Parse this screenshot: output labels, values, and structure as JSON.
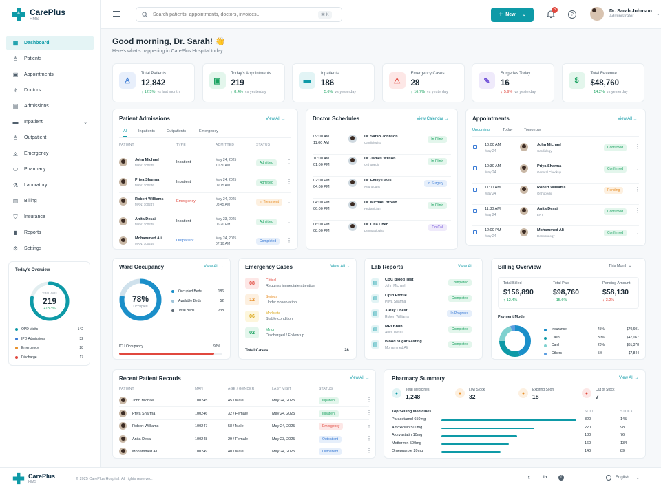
{
  "brand": {
    "name": "CarePlus",
    "sub": "HMS"
  },
  "header": {
    "search_placeholder": "Search patients, appointments, doctors, invoices...",
    "search_shortcut": "⌘ K",
    "new_button": "New",
    "notifications_count": "8",
    "user_name": "Dr. Sarah Johnson",
    "user_role": "Administrator"
  },
  "sidebar": {
    "items": [
      {
        "label": "Dashboard",
        "icon": "grid-icon"
      },
      {
        "label": "Patients",
        "icon": "user-icon"
      },
      {
        "label": "Appointments",
        "icon": "calendar-icon"
      },
      {
        "label": "Doctors",
        "icon": "doctor-icon"
      },
      {
        "label": "Admissions",
        "icon": "clipboard-icon"
      },
      {
        "label": "Inpatient",
        "icon": "bed-icon"
      },
      {
        "label": "Outpatient",
        "icon": "walk-icon"
      },
      {
        "label": "Emergency",
        "icon": "siren-icon"
      },
      {
        "label": "Pharmacy",
        "icon": "pill-icon"
      },
      {
        "label": "Laboratory",
        "icon": "flask-icon"
      },
      {
        "label": "Billing",
        "icon": "receipt-icon"
      },
      {
        "label": "Insurance",
        "icon": "shield-icon"
      },
      {
        "label": "Reports",
        "icon": "chart-icon"
      },
      {
        "label": "Settings",
        "icon": "gear-icon"
      }
    ],
    "overview": {
      "title": "Today's Overview",
      "ring_label": "Total Visits",
      "ring_value": "219",
      "ring_change": "+18.3%",
      "ring_fraction": 0.78,
      "rows": [
        {
          "label": "OPD Visits",
          "value": "142",
          "color": "#0e9aa7"
        },
        {
          "label": "IPD Admissions",
          "value": "32",
          "color": "#3a7bd5"
        },
        {
          "label": "Emergency",
          "value": "28",
          "color": "#e8902a"
        },
        {
          "label": "Discharge",
          "value": "17",
          "color": "#e0483e"
        }
      ]
    }
  },
  "greeting": {
    "title": "Good morning, Dr. Sarah! 👋",
    "subtitle": "Here's what's happening in CarePlus Hospital today."
  },
  "stats": [
    {
      "label": "Total Patients",
      "value": "12,842",
      "change": "12.5%",
      "period": "vs last month",
      "up": true,
      "color": "#3a7bd5",
      "bg": "#e8effb",
      "icon": "users-icon"
    },
    {
      "label": "Today's Appointments",
      "value": "219",
      "change": "8.4%",
      "period": "vs yesterday",
      "up": true,
      "color": "#1aa260",
      "bg": "#e3f6ec",
      "icon": "calendar-icon"
    },
    {
      "label": "Inpatients",
      "value": "186",
      "change": "5.6%",
      "period": "vs yesterday",
      "up": true,
      "color": "#0e9aa7",
      "bg": "#e2f4f5",
      "icon": "bed-icon"
    },
    {
      "label": "Emergency Cases",
      "value": "28",
      "change": "16.7%",
      "period": "vs yesterday",
      "up": true,
      "color": "#e0483e",
      "bg": "#fde7e6",
      "icon": "alert-icon"
    },
    {
      "label": "Surgeries Today",
      "value": "16",
      "change": "5.9%",
      "period": "vs yesterday",
      "up": false,
      "color": "#6c4bd6",
      "bg": "#efeafb",
      "icon": "scalpel-icon"
    },
    {
      "label": "Total Revenue",
      "value": "$48,760",
      "change": "14.2%",
      "period": "vs yesterday",
      "up": true,
      "color": "#1aa260",
      "bg": "#e3f6ec",
      "icon": "dollar-icon"
    }
  ],
  "admissions": {
    "title": "Patient Admissions",
    "view_all": "View All",
    "tabs": [
      "All",
      "Inpatients",
      "Outpatients",
      "Emergency"
    ],
    "headers": [
      "PATIENT",
      "TYPE",
      "ADMITTED",
      "STATUS"
    ],
    "rows": [
      {
        "name": "John Michael",
        "mrn": "MRN: 100245",
        "type": "Inpatient",
        "date": "May 24, 2025",
        "time": "10:30 AM",
        "status": "Admitted",
        "tone": "green"
      },
      {
        "name": "Priya Sharma",
        "mrn": "MRN: 100246",
        "type": "Inpatient",
        "date": "May 24, 2025",
        "time": "09:15 AM",
        "status": "Admitted",
        "tone": "green"
      },
      {
        "name": "Robert Williams",
        "mrn": "MRN: 100247",
        "type": "Emergency",
        "date": "May 24, 2025",
        "time": "08:45 AM",
        "status": "In Treatment",
        "tone": "orange"
      },
      {
        "name": "Anita Desai",
        "mrn": "MRN: 100248",
        "type": "Inpatient",
        "date": "May 23, 2025",
        "time": "06:20 PM",
        "status": "Admitted",
        "tone": "green"
      },
      {
        "name": "Mohammed Ali",
        "mrn": "MRN: 100249",
        "type": "Outpatient",
        "date": "May 24, 2025",
        "time": "07:10 AM",
        "status": "Completed",
        "tone": "blue"
      }
    ]
  },
  "schedules": {
    "title": "Doctor Schedules",
    "view_calendar": "View Calendar",
    "rows": [
      {
        "t1": "09:00 AM",
        "t2": "11:00 AM",
        "name": "Dr. Sarah Johnson",
        "spec": "Cardiologist",
        "status": "In Clinic",
        "tone": "green"
      },
      {
        "t1": "10:00 AM",
        "t2": "01:00 PM",
        "name": "Dr. James Wilson",
        "spec": "Orthopedic",
        "status": "In Clinic",
        "tone": "green"
      },
      {
        "t1": "02:00 PM",
        "t2": "04:00 PM",
        "name": "Dr. Emily Davis",
        "spec": "Neurologist",
        "status": "In Surgery",
        "tone": "blue"
      },
      {
        "t1": "04:00 PM",
        "t2": "06:00 PM",
        "name": "Dr. Michael Brown",
        "spec": "Pediatrician",
        "status": "In Clinic",
        "tone": "green"
      },
      {
        "t1": "06:00 PM",
        "t2": "08:00 PM",
        "name": "Dr. Lisa Chen",
        "spec": "Dermatologist",
        "status": "On Call",
        "tone": "purple"
      }
    ]
  },
  "appointments": {
    "title": "Appointments",
    "view_all": "View All",
    "tabs": [
      "Upcoming",
      "Today",
      "Tomorrow"
    ],
    "rows": [
      {
        "time": "10:00 AM",
        "date": "May 24",
        "name": "John Michael",
        "dept": "Cardiology",
        "status": "Confirmed",
        "tone": "green"
      },
      {
        "time": "10:30 AM",
        "date": "May 24",
        "name": "Priya Sharma",
        "dept": "General Checkup",
        "status": "Confirmed",
        "tone": "green"
      },
      {
        "time": "11:00 AM",
        "date": "May 24",
        "name": "Robert Williams",
        "dept": "Orthopedic",
        "status": "Pending",
        "tone": "orange"
      },
      {
        "time": "11:30 AM",
        "date": "May 24",
        "name": "Anita Desai",
        "dept": "ENT",
        "status": "Confirmed",
        "tone": "green"
      },
      {
        "time": "12:00 PM",
        "date": "May 24",
        "name": "Mohammed Ali",
        "dept": "Dermatology",
        "status": "Confirmed",
        "tone": "green"
      }
    ]
  },
  "ward": {
    "title": "Ward Occupancy",
    "view_all": "View All",
    "percent": "78%",
    "percent_label": "Occupied",
    "fraction": 0.78,
    "legend": [
      {
        "label": "Occupied Beds",
        "value": "186",
        "color": "#1b8fc9"
      },
      {
        "label": "Available Beds",
        "value": "52",
        "color": "#9fc3d8"
      },
      {
        "label": "Total Beds",
        "value": "238",
        "color": "#5f6b76"
      }
    ],
    "icu_label": "ICU Occupancy",
    "icu_value": "92%",
    "icu_fraction": 0.92
  },
  "emergency": {
    "title": "Emergency Cases",
    "view_all": "View All",
    "rows": [
      {
        "count": "08",
        "level": "Critical",
        "desc": "Requires immediate attention",
        "color": "#e0483e",
        "bg": "#fde7e6"
      },
      {
        "count": "12",
        "level": "Serious",
        "desc": "Under observation",
        "color": "#e8902a",
        "bg": "#fdf0e0"
      },
      {
        "count": "06",
        "level": "Moderate",
        "desc": "Stable condition",
        "color": "#d9a514",
        "bg": "#fdf6dc"
      },
      {
        "count": "02",
        "level": "Minor",
        "desc": "Discharged / Follow up",
        "color": "#1aa260",
        "bg": "#e3f6ec"
      }
    ],
    "total_label": "Total Cases",
    "total_value": "28"
  },
  "lab": {
    "title": "Lab Reports",
    "view_all": "View All",
    "rows": [
      {
        "test": "CBC Blood Test",
        "patient": "John Michael",
        "status": "Completed",
        "tone": "green"
      },
      {
        "test": "Lipid Profile",
        "patient": "Priya Sharma",
        "status": "Completed",
        "tone": "green"
      },
      {
        "test": "X-Ray Chest",
        "patient": "Robert Williams",
        "status": "In Progress",
        "tone": "blue"
      },
      {
        "test": "MRI Brain",
        "patient": "Anita Desai",
        "status": "Completed",
        "tone": "green"
      },
      {
        "test": "Blood Sugar Fasting",
        "patient": "Mohammed Ali",
        "status": "Completed",
        "tone": "green"
      }
    ]
  },
  "billing": {
    "title": "Billing Overview",
    "period": "This Month",
    "stats": [
      {
        "label": "Total Billed",
        "value": "$156,890",
        "change": "12.4%",
        "up": true
      },
      {
        "label": "Total Paid",
        "value": "$98,760",
        "change": "15.6%",
        "up": true
      },
      {
        "label": "Pending Amount",
        "value": "$58,130",
        "change": "3.2%",
        "up": false
      }
    ],
    "payment_mode_title": "Payment Mode",
    "modes": [
      {
        "label": "Insurance",
        "pct": "45%",
        "amount": "$70,601",
        "color": "#1b8fc9",
        "value": 45
      },
      {
        "label": "Cash",
        "pct": "30%",
        "amount": "$47,067",
        "color": "#0e9aa7",
        "value": 30
      },
      {
        "label": "Card",
        "pct": "20%",
        "amount": "$31,378",
        "color": "#7fd1cf",
        "value": 20
      },
      {
        "label": "Others",
        "pct": "5%",
        "amount": "$7,844",
        "color": "#5b9de0",
        "value": 5
      }
    ]
  },
  "records": {
    "title": "Recent Patient Records",
    "view_all": "View All",
    "headers": [
      "PATIENT",
      "MRN",
      "AGE / GENDER",
      "LAST VISIT",
      "STATUS"
    ],
    "rows": [
      {
        "name": "John Michael",
        "mrn": "100245",
        "age": "45 / Male",
        "visit": "May 24, 2025",
        "status": "Inpatient",
        "tone": "green"
      },
      {
        "name": "Priya Sharma",
        "mrn": "100246",
        "age": "32 / Female",
        "visit": "May 24, 2025",
        "status": "Inpatient",
        "tone": "green"
      },
      {
        "name": "Robert Williams",
        "mrn": "100247",
        "age": "58 / Male",
        "visit": "May 24, 2025",
        "status": "Emergency",
        "tone": "red"
      },
      {
        "name": "Anita Desai",
        "mrn": "100248",
        "age": "29 / Female",
        "visit": "May 23, 2025",
        "status": "Outpatient",
        "tone": "blue"
      },
      {
        "name": "Mohammed Ali",
        "mrn": "100249",
        "age": "40 / Male",
        "visit": "May 24, 2025",
        "status": "Outpatient",
        "tone": "blue"
      }
    ]
  },
  "pharmacy": {
    "title": "Pharmacy Summary",
    "view_all": "View All",
    "stats": [
      {
        "label": "Total Medicines",
        "value": "1,248",
        "color": "#0e9aa7",
        "bg": "#e2f4f5"
      },
      {
        "label": "Low Stock",
        "value": "32",
        "color": "#e8902a",
        "bg": "#fdf0e0"
      },
      {
        "label": "Expiring Soon",
        "value": "18",
        "color": "#e8902a",
        "bg": "#fdf0e0"
      },
      {
        "label": "Out of Stock",
        "value": "7",
        "color": "#e0483e",
        "bg": "#fde7e6"
      }
    ],
    "top_title": "Top Selling Medicines",
    "sold_header": "SOLD",
    "stock_header": "STOCK",
    "medicines": [
      {
        "name": "Paracetamol 650mg",
        "sold": "320",
        "stock": "145",
        "fraction": 1.0
      },
      {
        "name": "Amoxicillin 500mg",
        "sold": "220",
        "stock": "98",
        "fraction": 0.69
      },
      {
        "name": "Atorvastatin 10mg",
        "sold": "180",
        "stock": "76",
        "fraction": 0.56
      },
      {
        "name": "Metformin 500mg",
        "sold": "160",
        "stock": "134",
        "fraction": 0.5
      },
      {
        "name": "Omeprazole 20mg",
        "sold": "140",
        "stock": "89",
        "fraction": 0.44
      }
    ]
  },
  "footer": {
    "copyright": "© 2025 CarePlus Hospital. All rights reserved.",
    "language": "English"
  }
}
